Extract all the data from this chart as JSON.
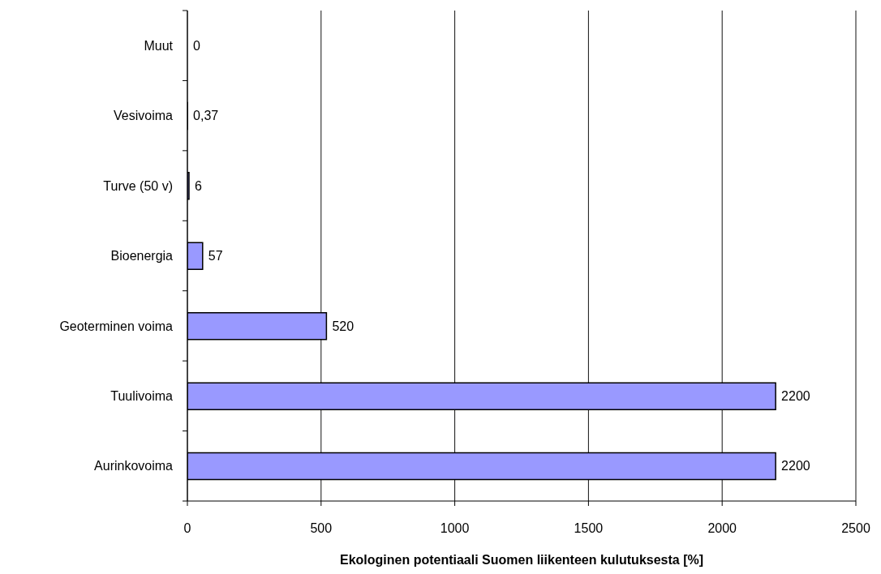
{
  "chart_data": {
    "type": "bar",
    "orientation": "horizontal",
    "categories": [
      "Muut",
      "Vesivoima",
      "Turve (50 v)",
      "Bioenergia",
      "Geoterminen voima",
      "Tuulivoima",
      "Aurinkovoima"
    ],
    "values": [
      0,
      0.37,
      6,
      57,
      520,
      2200,
      2200
    ],
    "value_labels": [
      "0",
      "0,37",
      "6",
      "57",
      "520",
      "2200",
      "2200"
    ],
    "color": "#9999ff",
    "xlim": [
      0,
      2500
    ],
    "xticks": [
      0,
      500,
      1000,
      1500,
      2000,
      2500
    ],
    "xlabel": "Ekologinen potentiaali Suomen liikenteen kulutuksesta [%]",
    "grid": "x"
  }
}
